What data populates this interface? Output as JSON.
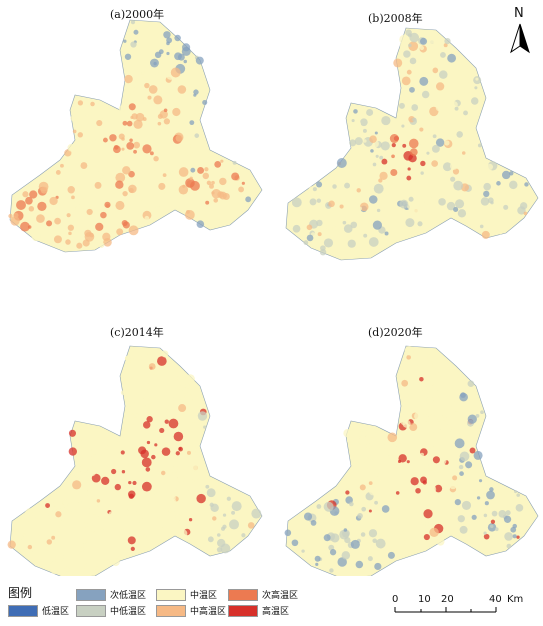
{
  "panels": [
    {
      "title": "(a)2000年",
      "hue": "mixed"
    },
    {
      "title": "(b)2008年",
      "hue": "cool"
    },
    {
      "title": "(c)2014年",
      "hue": "warm"
    },
    {
      "title": "(d)2020年",
      "hue": "pale"
    }
  ],
  "north_label": "N",
  "legend": {
    "title": "图例",
    "items": [
      {
        "label": "低温区",
        "color": "#3f6db5"
      },
      {
        "label": "次低温区",
        "color": "#86a2bf"
      },
      {
        "label": "中温区",
        "color": "#fbf6c3"
      },
      {
        "label": "次高温区",
        "color": "#ec7a51"
      },
      {
        "label": "中低温区",
        "color": "#c8d0c2"
      },
      {
        "label": "中高温区",
        "color": "#f6b985"
      },
      {
        "label": "高温区",
        "color": "#d7302a"
      }
    ]
  },
  "scale": {
    "ticks": [
      "0",
      "10",
      "20",
      "40"
    ],
    "unit": "Km"
  }
}
